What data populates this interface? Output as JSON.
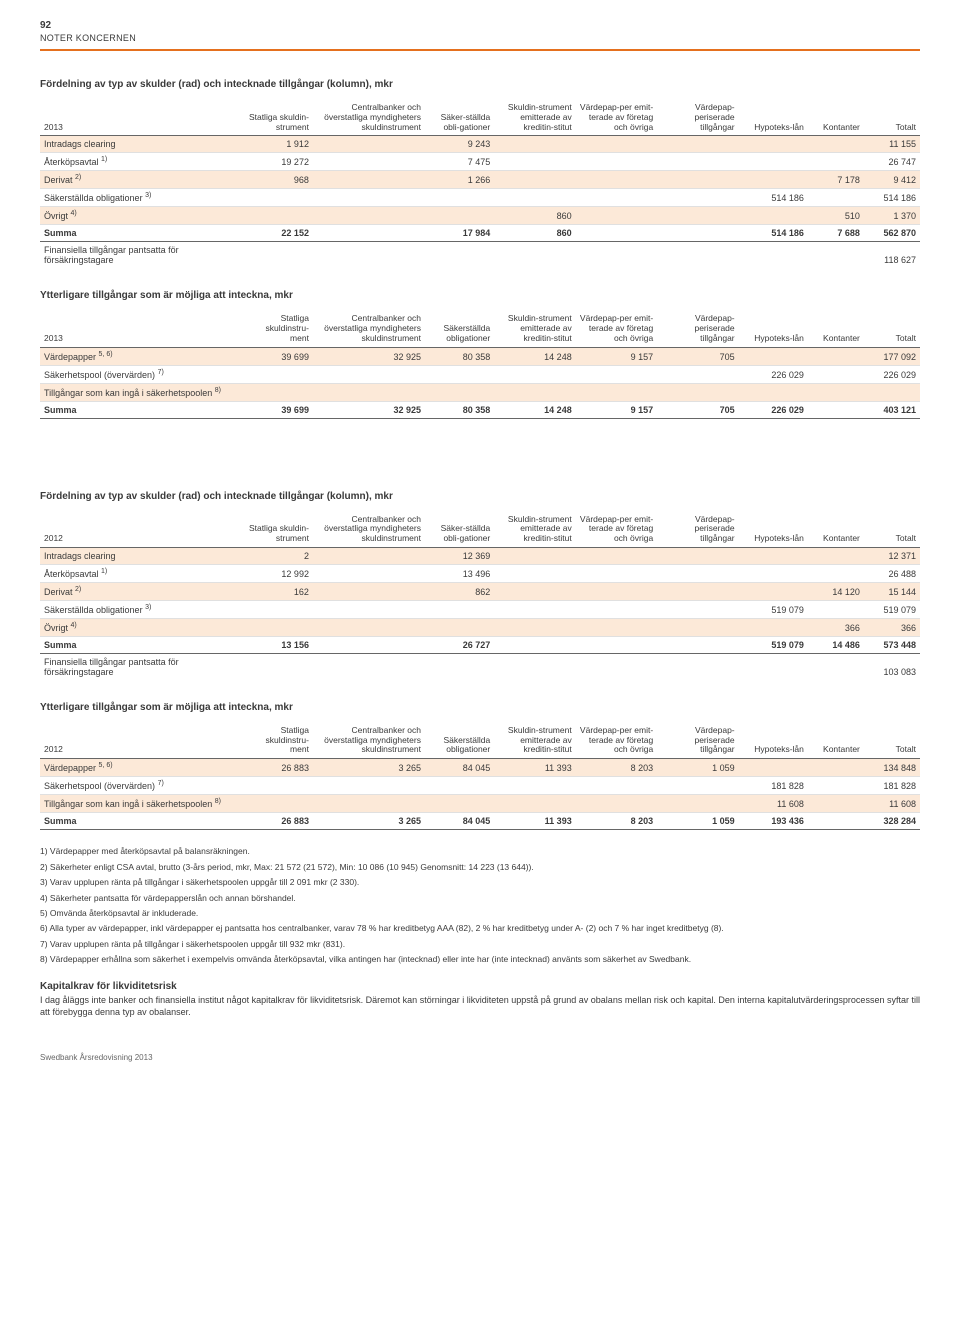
{
  "meta": {
    "page_number": "92",
    "section_label": "NOTER KONCERNEN",
    "footer": "Swedbank Årsredovisning 2013",
    "colors": {
      "accent": "#e5701e",
      "shaded_row": "#fce9d8",
      "text": "#3a3a3a",
      "border_light": "#e0e0e0",
      "border_dark": "#666666"
    }
  },
  "tables": {
    "t1": {
      "title": "Fördelning av typ av skulder (rad) och intecknade tillgångar (kolumn), mkr",
      "headers": {
        "year": "2013",
        "c1": "Statliga skuldin-strument",
        "c2": "Centralbanker och överstatliga myndigheters skuldinstrument",
        "c3": "Säker-ställda obli-gationer",
        "c4": "Skuldin-strument emitterade av kreditin-stitut",
        "c5": "Värdepap-per emit-terade av företag och övriga",
        "c6": "Värdepap-periserade tillgångar",
        "c7": "Hypoteks-lån",
        "c8": "Kontanter",
        "c9": "Totalt"
      },
      "rows": [
        {
          "label": "Intradags clearing",
          "c1": "1 912",
          "c3": "9 243",
          "c9": "11 155",
          "shaded": true
        },
        {
          "label": "Återköpsavtal ",
          "sup": "1)",
          "c1": "19 272",
          "c3": "7 475",
          "c9": "26 747"
        },
        {
          "label": "Derivat ",
          "sup": "2)",
          "c1": "968",
          "c3": "1 266",
          "c8": "7 178",
          "c9": "9 412",
          "shaded": true
        },
        {
          "label": "Säkerställda obligationer ",
          "sup": "3)",
          "c7": "514 186",
          "c9": "514 186"
        },
        {
          "label": "Övrigt ",
          "sup": "4)",
          "c4": "860",
          "c8": "510",
          "c9": "1 370",
          "shaded": true
        },
        {
          "label": "Summa",
          "c1": "22 152",
          "c3": "17 984",
          "c4": "860",
          "c7": "514 186",
          "c8": "7 688",
          "c9": "562 870",
          "sum": true
        },
        {
          "label": "Finansiella tillgångar pantsatta för försäkringstagare",
          "c9": "118 627",
          "noborder": true
        }
      ]
    },
    "t2": {
      "title": "Ytterligare tillgångar som är möjliga att inteckna, mkr",
      "headers": {
        "year": "2013",
        "c1": "Statliga skuldinstru-ment",
        "c2": "Centralbanker och överstatliga myndigheters skuldinstrument",
        "c3": "Säkerställda obligationer",
        "c4": "Skuldin-strument emitterade av kreditin-stitut",
        "c5": "Värdepap-per emit-terade av företag och övriga",
        "c6": "Värdepap-periserade tillgångar",
        "c7": "Hypoteks-lån",
        "c8": "Kontanter",
        "c9": "Totalt"
      },
      "rows": [
        {
          "label": "Värdepapper ",
          "sup": "5, 6)",
          "c1": "39 699",
          "c2": "32 925",
          "c3": "80 358",
          "c4": "14 248",
          "c5": "9 157",
          "c6": "705",
          "c9": "177 092",
          "shaded": true
        },
        {
          "label": "Säkerhetspool (övervärden) ",
          "sup": "7)",
          "c7": "226 029",
          "c9": "226 029"
        },
        {
          "label": "Tillgångar som kan ingå i säkerhetspoolen ",
          "sup": "8)",
          "shaded": true
        },
        {
          "label": "Summa",
          "c1": "39 699",
          "c2": "32 925",
          "c3": "80 358",
          "c4": "14 248",
          "c5": "9 157",
          "c6": "705",
          "c7": "226 029",
          "c9": "403 121",
          "sum": true
        }
      ]
    },
    "t3": {
      "title": "Fördelning av typ av skulder (rad) och intecknade tillgångar (kolumn), mkr",
      "headers": {
        "year": "2012",
        "c1": "Statliga skuldin-strument",
        "c2": "Centralbanker och överstatliga myndigheters skuldinstrument",
        "c3": "Säker-ställda obli-gationer",
        "c4": "Skuldin-strument emitterade av kreditin-stitut",
        "c5": "Värdepap-per emit-terade av företag och övriga",
        "c6": "Värdepap-periserade tillgångar",
        "c7": "Hypoteks-lån",
        "c8": "Kontanter",
        "c9": "Totalt"
      },
      "rows": [
        {
          "label": "Intradags clearing",
          "c1": "2",
          "c3": "12 369",
          "c9": "12 371",
          "shaded": true
        },
        {
          "label": "Återköpsavtal ",
          "sup": "1)",
          "c1": "12 992",
          "c3": "13 496",
          "c9": "26 488"
        },
        {
          "label": "Derivat ",
          "sup": "2)",
          "c1": "162",
          "c3": "862",
          "c8": "14 120",
          "c9": "15 144",
          "shaded": true
        },
        {
          "label": "Säkerställda obligationer ",
          "sup": "3)",
          "c7": "519 079",
          "c9": "519 079"
        },
        {
          "label": "Övrigt ",
          "sup": "4)",
          "c8": "366",
          "c9": "366",
          "shaded": true
        },
        {
          "label": "Summa",
          "c1": "13 156",
          "c3": "26 727",
          "c7": "519 079",
          "c8": "14 486",
          "c9": "573 448",
          "sum": true
        },
        {
          "label": "Finansiella tillgångar pantsatta för försäkringstagare",
          "c9": "103 083",
          "noborder": true
        }
      ]
    },
    "t4": {
      "title": "Ytterligare tillgångar som är möjliga att inteckna, mkr",
      "headers": {
        "year": "2012",
        "c1": "Statliga skuldinstru-ment",
        "c2": "Centralbanker och överstatliga myndigheters skuldinstrument",
        "c3": "Säkerställda obligationer",
        "c4": "Skuldin-strument emitterade av kreditin-stitut",
        "c5": "Värdepap-per emit-terade av företag och övriga",
        "c6": "Värdepap-periserade tillgångar",
        "c7": "Hypoteks-lån",
        "c8": "Kontanter",
        "c9": "Totalt"
      },
      "rows": [
        {
          "label": "Värdepapper ",
          "sup": "5, 6)",
          "c1": "26 883",
          "c2": "3 265",
          "c3": "84 045",
          "c4": "11 393",
          "c5": "8 203",
          "c6": "1 059",
          "c9": "134 848",
          "shaded": true
        },
        {
          "label": "Säkerhetspool (övervärden) ",
          "sup": "7)",
          "c7": "181 828",
          "c9": "181 828"
        },
        {
          "label": "Tillgångar som kan ingå i säkerhetspoolen ",
          "sup": "8)",
          "c7": "11 608",
          "c9": "11 608",
          "shaded": true
        },
        {
          "label": "Summa",
          "c1": "26 883",
          "c2": "3 265",
          "c3": "84 045",
          "c4": "11 393",
          "c5": "8 203",
          "c6": "1 059",
          "c7": "193 436",
          "c9": "328 284",
          "sum": true
        }
      ]
    }
  },
  "footnotes": [
    "1) Värdepapper med återköpsavtal på balansräkningen.",
    "2) Säkerheter enligt CSA avtal, brutto (3-års period, mkr, Max: 21 572 (21 572), Min: 10 086 (10 945) Genomsnitt: 14 223 (13 644)).",
    "3) Varav upplupen ränta på tillgångar i säkerhetspoolen uppgår till 2 091 mkr (2 330).",
    "4) Säkerheter pantsatta för värdepapperslån och annan börshandel.",
    "5) Omvända återköpsavtal är inkluderade.",
    "6) Alla typer av värdepapper, inkl värdepapper ej pantsatta hos centralbanker, varav 78 % har kreditbetyg AAA (82), 2 % har kreditbetyg under A- (2) och 7 % har inget kreditbetyg (8).",
    "7) Varav upplupen ränta på tillgångar i säkerhetspoolen uppgår till 932 mkr (831).",
    "8) Värdepapper erhållna som säkerhet i exempelvis omvända återköpsavtal, vilka antingen har (intecknad) eller inte har (inte intecknad) använts som säkerhet av Swedbank."
  ],
  "body": {
    "heading": "Kapitalkrav för likviditetsrisk",
    "text": "I dag åläggs inte banker och finansiella institut något kapitalkrav för likviditetsrisk. Däremot kan störningar i likviditeten uppstå på grund av obalans mellan risk och kapital. Den interna kapitalutvärderingsprocessen syftar till att förebygga denna typ av obalanser."
  }
}
